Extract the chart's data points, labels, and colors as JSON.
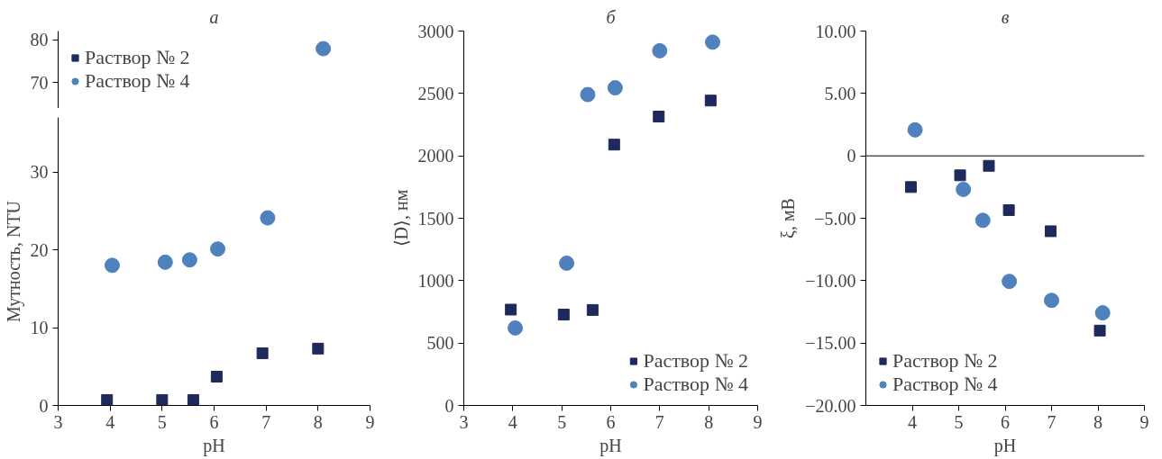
{
  "chart_data": [
    {
      "type": "scatter",
      "title": "а",
      "xlim": [
        3,
        9
      ],
      "ylim": [
        64,
        82
      ],
      "yticks": [
        70,
        80
      ],
      "tick_labels": "y",
      "legend": "left",
      "grid": false,
      "series": [
        {
          "name": "Раствор № 2",
          "color": "#1f2a5c",
          "marker": "square"
        },
        {
          "name": "Раствор № 4",
          "color": "#4f81bd",
          "marker": "circle",
          "x": [
            8.1
          ],
          "values": [
            77.9
          ]
        }
      ]
    },
    {
      "type": "scatter",
      "ylabel": "Мутность, NTU",
      "xlabel": "pH",
      "xlim": [
        3,
        9
      ],
      "ylim": [
        0,
        37
      ],
      "xticks": [
        3,
        4,
        5,
        6,
        7,
        8,
        9
      ],
      "yticks": [
        0,
        10,
        20,
        30
      ],
      "grid": false,
      "series": [
        {
          "color": "#1f2a5c",
          "marker": "square",
          "x": [
            3.94,
            5.0,
            5.6,
            6.05,
            6.93,
            8.0
          ],
          "values": [
            0.7,
            0.7,
            0.7,
            3.7,
            6.7,
            7.3
          ]
        },
        {
          "color": "#4f81bd",
          "marker": "circle",
          "x": [
            4.04,
            5.06,
            5.53,
            6.07,
            7.03
          ],
          "values": [
            18.0,
            18.4,
            18.7,
            20.1,
            24.1
          ]
        }
      ]
    },
    {
      "type": "scatter",
      "title": "б",
      "ylabel": "⟨D⟩, нм",
      "xlabel": "pH",
      "xlim": [
        3,
        9
      ],
      "ylim": [
        0,
        3000
      ],
      "xticks": [
        3,
        4,
        5,
        6,
        7,
        8,
        9
      ],
      "yticks": [
        0,
        500,
        1000,
        1500,
        2000,
        2500,
        3000
      ],
      "legend": "bottom right",
      "grid": false,
      "series": [
        {
          "name": "Раствор № 2",
          "color": "#1f2a5c",
          "marker": "square",
          "x": [
            3.96,
            5.04,
            5.63,
            6.07,
            6.98,
            8.04
          ],
          "values": [
            768,
            728,
            765,
            2090,
            2315,
            2443
          ]
        },
        {
          "name": "Раствор № 4",
          "color": "#4f81bd",
          "marker": "circle",
          "x": [
            4.05,
            5.1,
            5.53,
            6.09,
            7.0,
            8.08
          ],
          "values": [
            621,
            1140,
            2491,
            2545,
            2842,
            2911
          ]
        }
      ]
    },
    {
      "type": "scatter",
      "title": "в",
      "ylabel": "ξ, мВ",
      "xlabel": "pH",
      "xlim": [
        3,
        9
      ],
      "ylim": [
        -20,
        10
      ],
      "xticks": [
        4,
        5,
        6,
        7,
        8,
        9
      ],
      "yticks": [
        {
          "value": 10,
          "label": "10.00"
        },
        {
          "value": 5,
          "label": "5.00"
        },
        0,
        {
          "value": -5,
          "label": "−5.00"
        },
        {
          "value": -10,
          "label": "−10.00"
        },
        {
          "value": -15,
          "label": "−15.00"
        },
        {
          "value": -20,
          "label": "−20.00"
        }
      ],
      "legend": "bottom left",
      "grid": false,
      "ref_lines": [
        {
          "axis": "y",
          "value": 0,
          "color": "#000000"
        }
      ],
      "series": [
        {
          "name": "Раствор № 2",
          "color": "#1f2a5c",
          "marker": "square",
          "x": [
            3.97,
            5.03,
            5.65,
            6.08,
            6.98,
            8.04
          ],
          "values": [
            -2.5,
            -1.56,
            -0.8,
            -4.35,
            -6.04,
            -14.0
          ]
        },
        {
          "name": "Раствор № 4",
          "color": "#4f81bd",
          "marker": "circle",
          "x": [
            4.06,
            5.1,
            5.52,
            6.09,
            7.0,
            8.1
          ],
          "values": [
            2.08,
            -2.69,
            -5.17,
            -10.06,
            -11.58,
            -12.58
          ]
        }
      ]
    }
  ]
}
